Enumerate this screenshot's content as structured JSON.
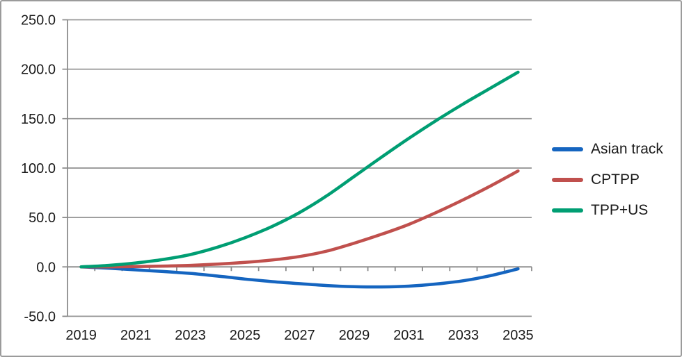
{
  "chart": {
    "background": "#ffffff",
    "border_color": "#9b9b9b",
    "grid_color": "#969696",
    "axis_color": "#8c8c8c",
    "tick_color": "#8c8c8c",
    "text_color": "#1a1a1a"
  },
  "chart_data": {
    "type": "line",
    "title": "",
    "xlabel": "",
    "ylabel": "",
    "x": [
      2019,
      2020,
      2021,
      2022,
      2023,
      2024,
      2025,
      2026,
      2027,
      2028,
      2029,
      2030,
      2031,
      2032,
      2033,
      2034,
      2035
    ],
    "x_tick_labels": [
      "2019",
      "2021",
      "2023",
      "2025",
      "2027",
      "2029",
      "2031",
      "2033",
      "2035"
    ],
    "x_label_every": 2,
    "y_axis": {
      "min": -50,
      "max": 250,
      "step": 50,
      "tick_labels": [
        "250.0",
        "200.0",
        "150.0",
        "100.0",
        "50.0",
        "0.0",
        "-50.0"
      ]
    },
    "grid": "horizontal",
    "legend_position": "right",
    "series": [
      {
        "name": "Asian track",
        "color": "#1565C0",
        "values": [
          0,
          -1.3,
          -3,
          -4.7,
          -6.6,
          -9.3,
          -12.3,
          -14.9,
          -17,
          -18.9,
          -20,
          -20.3,
          -19.5,
          -17.3,
          -14,
          -8.8,
          -2
        ]
      },
      {
        "name": "CPTPP",
        "color": "#C0504D",
        "values": [
          0,
          0,
          0.3,
          0.8,
          1.5,
          2.8,
          4.5,
          7,
          10.5,
          16,
          24,
          33,
          43,
          55,
          68,
          82,
          97
        ]
      },
      {
        "name": "TPP+US",
        "color": "#009E73",
        "values": [
          0,
          1.5,
          4,
          7.5,
          12.5,
          20,
          29.5,
          41,
          55,
          72,
          91.5,
          111,
          130,
          148,
          165,
          181,
          197
        ]
      }
    ]
  }
}
